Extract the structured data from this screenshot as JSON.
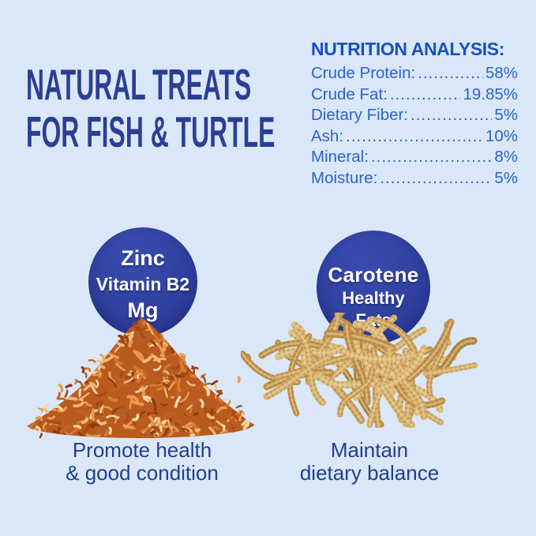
{
  "title": {
    "line1": "NATURAL TREATS",
    "line2": "FOR FISH & TURTLE"
  },
  "nutrition": {
    "heading": "NUTRITION ANALYSIS:",
    "rows": [
      {
        "label": "Crude Protein:",
        "dots": "................",
        "value": "58%"
      },
      {
        "label": "Crude Fat:",
        "dots": "..................",
        "value": "19.85%"
      },
      {
        "label": "Dietary Fiber:",
        "dots": ".....................",
        "value": "5%"
      },
      {
        "label": "Ash:",
        "dots": "..................................",
        "value": "10%"
      },
      {
        "label": "Mineral:",
        "dots": ".............................",
        "value": "8%"
      },
      {
        "label": "Moisture:",
        "dots": "..........................",
        "value": "5%"
      }
    ]
  },
  "badges": {
    "left": {
      "lines": [
        "Zinc",
        "Vitamin B2",
        "Mg"
      ]
    },
    "right": {
      "lines": [
        "Carotene",
        "Healthy",
        "Fats"
      ]
    }
  },
  "products": {
    "left": {
      "name": "dried-shrimp-pile",
      "caption_line1": "Promote health",
      "caption_line2": "& good condition",
      "palette": [
        "#8f3f12",
        "#a84c17",
        "#c2621f",
        "#d57a31",
        "#e89a4f",
        "#f3b877",
        "#f8d8a8"
      ],
      "base_color": "#b95a1f"
    },
    "right": {
      "name": "dried-mealworms-pile",
      "caption_line1": "Maintain",
      "caption_line2": "dietary balance",
      "palette": [
        "#b5873f",
        "#c2924b",
        "#cda05a",
        "#d7b06c",
        "#e0bd7c"
      ],
      "ring_color": "#8f6a34",
      "sheen_color": "#f0d9a4"
    }
  },
  "colors": {
    "background": "#d9e7f8",
    "title_blue": "#2c3e94",
    "heading_blue": "#1a4fc0",
    "body_blue": "#2f62cc",
    "badge_blue": "#2d3e9b",
    "badge_text": "#ffffff",
    "caption_blue": "#233e8f"
  }
}
